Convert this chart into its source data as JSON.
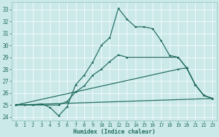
{
  "xlabel": "Humidex (Indice chaleur)",
  "xlim": [
    -0.5,
    23.5
  ],
  "ylim": [
    23.7,
    33.6
  ],
  "yticks": [
    24,
    25,
    26,
    27,
    28,
    29,
    30,
    31,
    32,
    33
  ],
  "xticks": [
    0,
    1,
    2,
    3,
    4,
    5,
    6,
    7,
    8,
    9,
    10,
    11,
    12,
    13,
    14,
    15,
    16,
    17,
    18,
    19,
    20,
    21,
    22,
    23
  ],
  "bg_color": "#cce9e9",
  "line_color": "#1e6b5e",
  "grid_color": "#ffffff",
  "line1_x": [
    0,
    1,
    2,
    3,
    4,
    5,
    6,
    7,
    8,
    9,
    10,
    11,
    12,
    13,
    14,
    15,
    16,
    17,
    18,
    19,
    20,
    21,
    22,
    23
  ],
  "line1_y": [
    25.0,
    25.0,
    25.0,
    25.1,
    24.8,
    24.1,
    24.85,
    26.7,
    27.5,
    28.6,
    30.0,
    30.65,
    33.1,
    32.2,
    31.55,
    31.55,
    31.4,
    30.4,
    29.15,
    29.0,
    28.1,
    26.7,
    25.8,
    25.55
  ],
  "line2_x": [
    0,
    5,
    6,
    7,
    8,
    9,
    10,
    11,
    12,
    13,
    19,
    20,
    21,
    22,
    23
  ],
  "line2_y": [
    25.0,
    25.0,
    25.3,
    26.1,
    26.6,
    27.5,
    28.0,
    28.65,
    29.2,
    29.0,
    29.0,
    28.1,
    26.7,
    25.8,
    25.55
  ],
  "line3_x": [
    0,
    19,
    20,
    21,
    22,
    23
  ],
  "line3_y": [
    25.0,
    28.0,
    28.1,
    26.7,
    25.8,
    25.55
  ],
  "line4_x": [
    0,
    23
  ],
  "line4_y": [
    25.0,
    25.55
  ]
}
